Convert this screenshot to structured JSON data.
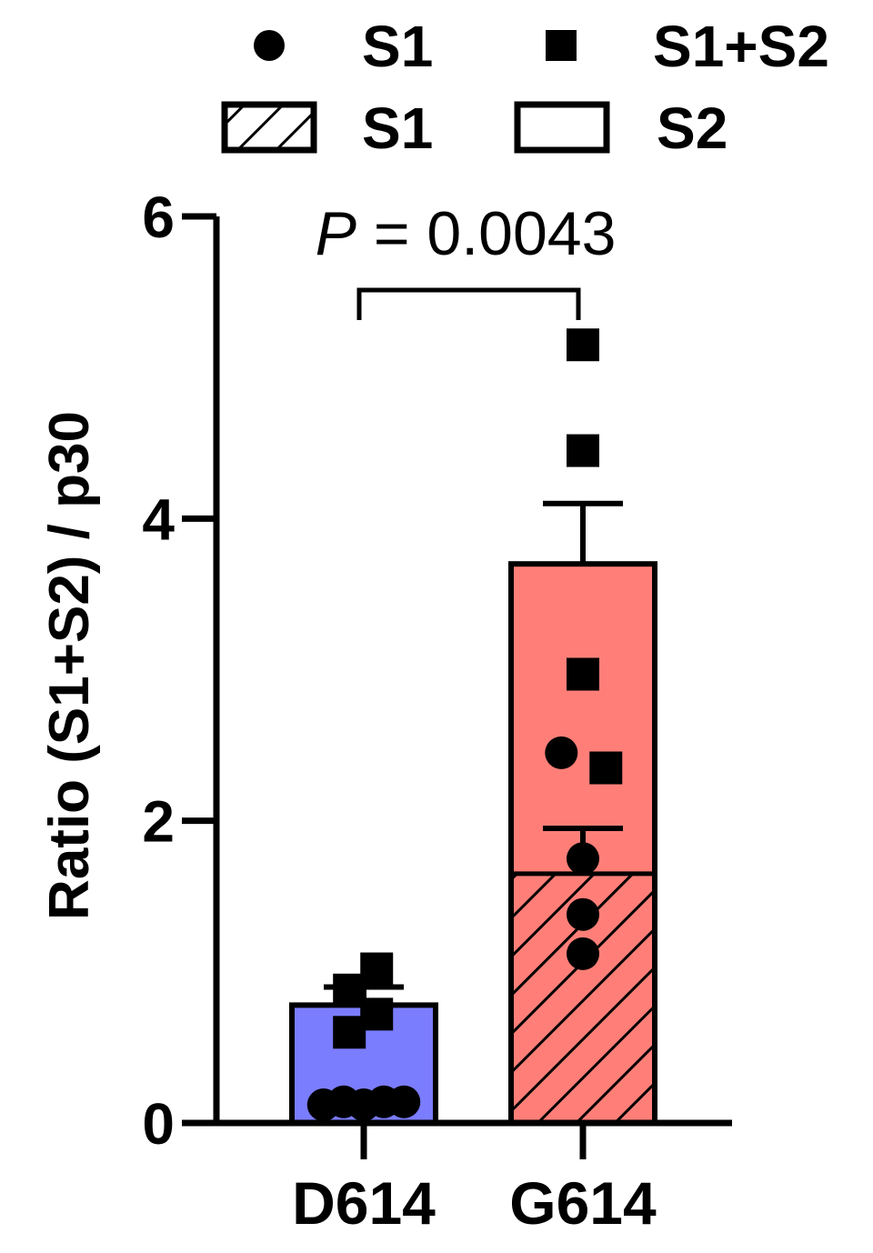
{
  "chart_data": {
    "type": "bar",
    "categories": [
      "D614",
      "G614"
    ],
    "ylabel": "Ratio (S1+S2) / p30",
    "ylim": [
      0,
      6
    ],
    "yticks": [
      0,
      2,
      4,
      6
    ],
    "legend": {
      "placement": "top",
      "points": [
        {
          "label": "S1",
          "marker": "circle"
        },
        {
          "label": "S1+S2",
          "marker": "square"
        }
      ],
      "bars": [
        {
          "label": "S1",
          "fill": "hatched"
        },
        {
          "label": "S2",
          "fill": "solid"
        }
      ]
    },
    "stacks": [
      {
        "category": "D614",
        "s1": 0.08,
        "total": 0.78,
        "color": "#7b7dff",
        "s1_err": 0.0,
        "total_err": 0.12
      },
      {
        "category": "G614",
        "s1": 1.65,
        "total": 3.7,
        "color": "#ff7f78",
        "s1_err": 0.3,
        "total_err": 0.4
      }
    ],
    "points": [
      {
        "category": "D614",
        "series": "S1",
        "y": 0.12,
        "offset": -0.28
      },
      {
        "category": "D614",
        "series": "S1",
        "y": 0.14,
        "offset": -0.14
      },
      {
        "category": "D614",
        "series": "S1",
        "y": 0.12,
        "offset": 0.0
      },
      {
        "category": "D614",
        "series": "S1",
        "y": 0.14,
        "offset": 0.14
      },
      {
        "category": "D614",
        "series": "S1",
        "y": 0.14,
        "offset": 0.28
      },
      {
        "category": "D614",
        "series": "S1+S2",
        "y": 0.88,
        "offset": -0.1
      },
      {
        "category": "D614",
        "series": "S1+S2",
        "y": 0.6,
        "offset": -0.1
      },
      {
        "category": "D614",
        "series": "S1+S2",
        "y": 1.02,
        "offset": 0.09
      },
      {
        "category": "D614",
        "series": "S1+S2",
        "y": 0.72,
        "offset": 0.09
      },
      {
        "category": "G614",
        "series": "S1",
        "y": 2.45,
        "offset": -0.15
      },
      {
        "category": "G614",
        "series": "S1",
        "y": 1.75,
        "offset": 0.0
      },
      {
        "category": "G614",
        "series": "S1",
        "y": 1.38,
        "offset": 0.0
      },
      {
        "category": "G614",
        "series": "S1",
        "y": 1.12,
        "offset": 0.0
      },
      {
        "category": "G614",
        "series": "S1+S2",
        "y": 5.15,
        "offset": 0.0
      },
      {
        "category": "G614",
        "series": "S1+S2",
        "y": 4.45,
        "offset": 0.0
      },
      {
        "category": "G614",
        "series": "S1+S2",
        "y": 2.97,
        "offset": 0.0
      },
      {
        "category": "G614",
        "series": "S1+S2",
        "y": 2.35,
        "offset": 0.16
      }
    ],
    "annotation": {
      "p_symbol": "P",
      "text": " = 0.0043",
      "between": [
        "D614",
        "G614"
      ],
      "y": 5.5
    }
  }
}
